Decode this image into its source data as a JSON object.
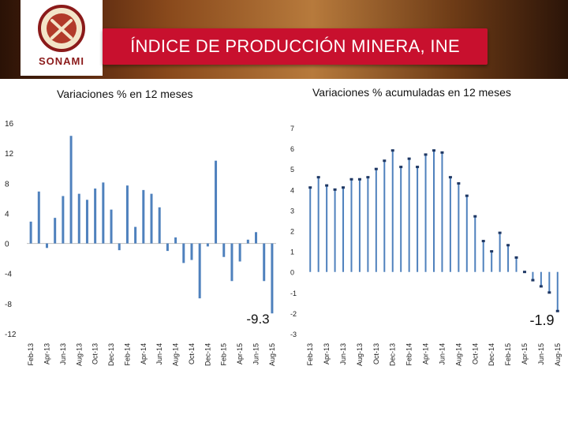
{
  "header": {
    "title": "ÍNDICE DE PRODUCCIÓN MINERA, INE",
    "logo_text": "SONAMI",
    "banner_color": "#c8102e"
  },
  "chart_data": [
    {
      "type": "bar",
      "title": "Variaciones % en 12 meses",
      "categories": [
        "Feb-13",
        "Mar-13",
        "Apr-13",
        "May-13",
        "Jun-13",
        "Jul-13",
        "Aug-13",
        "Sep-13",
        "Oct-13",
        "Nov-13",
        "Dec-13",
        "Jan-14",
        "Feb-14",
        "Mar-14",
        "Apr-14",
        "May-14",
        "Jun-14",
        "Jul-14",
        "Aug-14",
        "Sep-14",
        "Oct-14",
        "Nov-14",
        "Dec-14",
        "Jan-15",
        "Feb-15",
        "Mar-15",
        "Apr-15",
        "May-15",
        "Jun-15",
        "Jul-15",
        "Aug-15"
      ],
      "tick_labels": [
        "Feb-13",
        "Apr-13",
        "Jun-13",
        "Aug-13",
        "Oct-13",
        "Dec-13",
        "Feb-14",
        "Apr-14",
        "Jun-14",
        "Aug-14",
        "Oct-14",
        "Dec-14",
        "Feb-15",
        "Apr-15",
        "Jun-15",
        "Aug-15"
      ],
      "values": [
        2.9,
        6.9,
        -0.6,
        3.4,
        6.3,
        14.3,
        6.6,
        5.8,
        7.3,
        8.1,
        4.5,
        -0.9,
        7.7,
        2.2,
        7.1,
        6.6,
        4.8,
        -1.0,
        0.8,
        -2.6,
        -2.2,
        -7.3,
        -0.4,
        11.0,
        -1.8,
        -5.0,
        -2.4,
        0.5,
        1.5,
        -5.0,
        -9.3
      ],
      "ylim": [
        -12,
        16
      ],
      "yticks": [
        16,
        12,
        8,
        4,
        0,
        -4,
        -8,
        -12
      ],
      "annotation": "-9.3",
      "color": "#4f81bd"
    },
    {
      "type": "line",
      "title": "Variaciones % acumuladas en 12 meses",
      "categories": [
        "Feb-13",
        "Mar-13",
        "Apr-13",
        "May-13",
        "Jun-13",
        "Jul-13",
        "Aug-13",
        "Sep-13",
        "Oct-13",
        "Nov-13",
        "Dec-13",
        "Jan-14",
        "Feb-14",
        "Mar-14",
        "Apr-14",
        "May-14",
        "Jun-14",
        "Jul-14",
        "Aug-14",
        "Sep-14",
        "Oct-14",
        "Nov-14",
        "Dec-14",
        "Jan-15",
        "Feb-15",
        "Mar-15",
        "Apr-15",
        "May-15",
        "Jun-15",
        "Jul-15",
        "Aug-15"
      ],
      "tick_labels": [
        "Feb-13",
        "Apr-13",
        "Jun-13",
        "Aug-13",
        "Oct-13",
        "Dec-13",
        "Feb-14",
        "Apr-14",
        "Jun-14",
        "Aug-14",
        "Oct-14",
        "Dec-14",
        "Feb-15",
        "Apr-15",
        "Jun-15",
        "Aug-15"
      ],
      "values": [
        4.1,
        4.6,
        4.2,
        4.0,
        4.1,
        4.5,
        4.5,
        4.6,
        5.0,
        5.4,
        5.9,
        5.1,
        5.5,
        5.1,
        5.7,
        5.9,
        5.8,
        4.6,
        4.3,
        3.7,
        2.7,
        1.5,
        1.0,
        1.9,
        1.3,
        0.7,
        0.0,
        -0.4,
        -0.7,
        -1.0,
        -1.9
      ],
      "ylim": [
        -3,
        7
      ],
      "yticks": [
        7,
        6,
        5,
        4,
        3,
        2,
        1,
        0,
        -1,
        -2,
        -3
      ],
      "annotation": "-1.9",
      "color": "#4f81bd"
    }
  ]
}
